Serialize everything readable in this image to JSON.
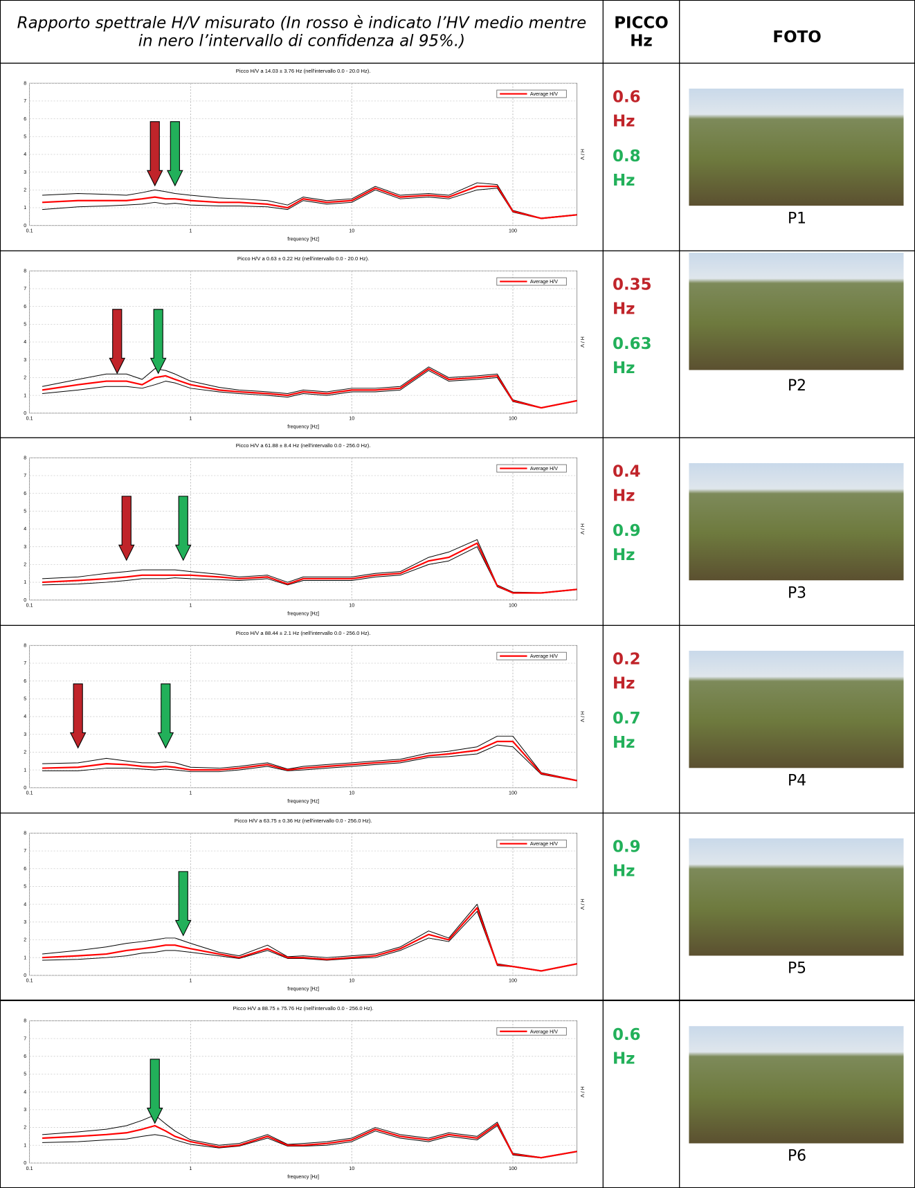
{
  "header": {
    "description": "Rapporto spettrale H/V misurato (In rosso è indicato l’HV medio mentre in nero l’intervallo di confidenza al 95%.)",
    "peak": "PICCO Hz",
    "photo": "FOTO"
  },
  "rows": [
    {
      "chart_data": {
        "type": "line",
        "title": "Picco H/V a 14.03 ± 3.76 Hz (nell'intervallo 0.0 - 20.0 Hz).",
        "x_label": "frequency [Hz]",
        "y_label": "H / V",
        "x": [
          0.12,
          0.2,
          0.3,
          0.4,
          0.5,
          0.6,
          0.7,
          0.8,
          1,
          1.5,
          2,
          3,
          4,
          5,
          7,
          10,
          14,
          20,
          30,
          40,
          60,
          80,
          100,
          150,
          250
        ],
        "series": [
          {
            "name": "Average H/V",
            "color": "#ff0000",
            "values": [
              1.3,
              1.4,
              1.4,
              1.4,
              1.5,
              1.6,
              1.5,
              1.5,
              1.4,
              1.3,
              1.3,
              1.2,
              1.0,
              1.5,
              1.3,
              1.4,
              2.1,
              1.6,
              1.7,
              1.6,
              2.2,
              2.2,
              0.8,
              0.4,
              0.6
            ]
          },
          {
            "color": "#000000",
            "values": [
              1.7,
              1.8,
              1.75,
              1.7,
              1.85,
              2.0,
              1.9,
              1.8,
              1.7,
              1.55,
              1.5,
              1.4,
              1.15,
              1.6,
              1.4,
              1.5,
              2.2,
              1.7,
              1.8,
              1.7,
              2.4,
              2.3,
              0.85,
              0.42,
              0.62
            ]
          },
          {
            "color": "#000000",
            "values": [
              0.9,
              1.05,
              1.1,
              1.15,
              1.2,
              1.3,
              1.2,
              1.25,
              1.15,
              1.1,
              1.1,
              1.05,
              0.9,
              1.4,
              1.2,
              1.3,
              2.0,
              1.5,
              1.6,
              1.5,
              2.0,
              2.1,
              0.75,
              0.38,
              0.58
            ]
          }
        ],
        "xlim": [
          0.1,
          250
        ],
        "ylim": [
          0,
          8
        ],
        "xticks": [
          0.1,
          1,
          10,
          100
        ],
        "yticks": [
          0,
          1,
          2,
          3,
          4,
          5,
          6,
          7,
          8
        ],
        "log_x": true,
        "grid": true
      },
      "peaks": [
        {
          "value": 0.6,
          "unit": "Hz",
          "color": "#c0242a"
        },
        {
          "value": 0.8,
          "unit": "Hz",
          "color": "#22b05a"
        }
      ],
      "photo_caption": "P1"
    },
    {
      "chart_data": {
        "type": "line",
        "title": "Picco H/V a 0.63 ± 0.22 Hz (nell'intervallo 0.0 - 20.0 Hz).",
        "x_label": "frequency [Hz]",
        "y_label": "H / V",
        "x": [
          0.12,
          0.2,
          0.3,
          0.4,
          0.5,
          0.6,
          0.7,
          0.8,
          1,
          1.5,
          2,
          3,
          4,
          5,
          7,
          10,
          14,
          20,
          30,
          40,
          60,
          80,
          100,
          150,
          250
        ],
        "series": [
          {
            "name": "Average H/V",
            "color": "#ff0000",
            "values": [
              1.3,
              1.6,
              1.8,
              1.8,
              1.6,
              2.0,
              2.1,
              1.9,
              1.6,
              1.3,
              1.2,
              1.1,
              1.0,
              1.2,
              1.1,
              1.3,
              1.3,
              1.4,
              2.5,
              1.9,
              2.0,
              2.1,
              0.7,
              0.3,
              0.7
            ]
          },
          {
            "color": "#000000",
            "values": [
              1.5,
              1.9,
              2.2,
              2.2,
              1.9,
              2.5,
              2.4,
              2.2,
              1.8,
              1.45,
              1.3,
              1.2,
              1.1,
              1.3,
              1.2,
              1.4,
              1.4,
              1.5,
              2.6,
              2.0,
              2.1,
              2.2,
              0.75,
              0.32,
              0.72
            ]
          },
          {
            "color": "#000000",
            "values": [
              1.1,
              1.3,
              1.5,
              1.5,
              1.4,
              1.6,
              1.8,
              1.7,
              1.4,
              1.2,
              1.1,
              1.0,
              0.9,
              1.1,
              1.0,
              1.2,
              1.2,
              1.3,
              2.4,
              1.8,
              1.9,
              2.0,
              0.65,
              0.28,
              0.68
            ]
          }
        ],
        "xlim": [
          0.1,
          250
        ],
        "ylim": [
          0,
          8
        ],
        "xticks": [
          0.1,
          1,
          10,
          100
        ],
        "yticks": [
          0,
          1,
          2,
          3,
          4,
          5,
          6,
          7,
          8
        ],
        "log_x": true,
        "grid": true
      },
      "peaks": [
        {
          "value": 0.35,
          "unit": "Hz",
          "color": "#c0242a"
        },
        {
          "value": 0.63,
          "unit": "Hz",
          "color": "#22b05a"
        }
      ],
      "photo_caption": "P2"
    },
    {
      "chart_data": {
        "type": "line",
        "title": "Picco H/V a 61.88 ± 8.4 Hz (nell'intervallo 0.0 - 256.0 Hz).",
        "x_label": "frequency [Hz]",
        "y_label": "H / V",
        "x": [
          0.12,
          0.2,
          0.3,
          0.4,
          0.5,
          0.6,
          0.7,
          0.8,
          1,
          1.5,
          2,
          3,
          4,
          5,
          7,
          10,
          14,
          20,
          30,
          40,
          60,
          80,
          100,
          150,
          250
        ],
        "series": [
          {
            "name": "Average H/V",
            "color": "#ff0000",
            "values": [
              1.0,
              1.1,
              1.2,
              1.3,
              1.4,
              1.4,
              1.4,
              1.4,
              1.4,
              1.3,
              1.2,
              1.3,
              0.9,
              1.2,
              1.2,
              1.2,
              1.4,
              1.5,
              2.2,
              2.4,
              3.2,
              0.8,
              0.4,
              0.4,
              0.6
            ]
          },
          {
            "color": "#000000",
            "values": [
              1.2,
              1.3,
              1.5,
              1.6,
              1.7,
              1.7,
              1.7,
              1.7,
              1.6,
              1.45,
              1.3,
              1.4,
              1.0,
              1.3,
              1.3,
              1.3,
              1.5,
              1.6,
              2.4,
              2.7,
              3.4,
              0.85,
              0.45,
              0.42,
              0.62
            ]
          },
          {
            "color": "#000000",
            "values": [
              0.85,
              0.9,
              1.0,
              1.1,
              1.2,
              1.2,
              1.2,
              1.25,
              1.2,
              1.15,
              1.1,
              1.2,
              0.85,
              1.1,
              1.1,
              1.1,
              1.3,
              1.4,
              2.0,
              2.2,
              3.0,
              0.75,
              0.38,
              0.38,
              0.58
            ]
          }
        ],
        "xlim": [
          0.1,
          250
        ],
        "ylim": [
          0,
          8
        ],
        "xticks": [
          0.1,
          1,
          10,
          100
        ],
        "yticks": [
          0,
          1,
          2,
          3,
          4,
          5,
          6,
          7,
          8
        ],
        "log_x": true,
        "grid": true
      },
      "peaks": [
        {
          "value": 0.4,
          "unit": "Hz",
          "color": "#c0242a"
        },
        {
          "value": 0.9,
          "unit": "Hz",
          "color": "#22b05a"
        }
      ],
      "photo_caption": "P3"
    },
    {
      "chart_data": {
        "type": "line",
        "title": "Picco H/V a 88.44 ± 2.1 Hz (nell'intervallo 0.0 - 256.0 Hz).",
        "x_label": "frequency [Hz]",
        "y_label": "H / V",
        "x": [
          0.12,
          0.2,
          0.3,
          0.4,
          0.5,
          0.6,
          0.7,
          0.8,
          1,
          1.5,
          2,
          3,
          4,
          5,
          7,
          10,
          14,
          20,
          30,
          40,
          60,
          80,
          100,
          150,
          250
        ],
        "series": [
          {
            "name": "Average H/V",
            "color": "#ff0000",
            "values": [
              1.1,
              1.15,
              1.35,
              1.3,
              1.2,
              1.15,
              1.2,
              1.15,
              1.0,
              1.0,
              1.1,
              1.3,
              1.0,
              1.1,
              1.2,
              1.3,
              1.4,
              1.5,
              1.8,
              1.9,
              2.1,
              2.6,
              2.6,
              0.8,
              0.4
            ]
          },
          {
            "color": "#000000",
            "values": [
              1.35,
              1.4,
              1.65,
              1.5,
              1.4,
              1.4,
              1.45,
              1.4,
              1.15,
              1.1,
              1.2,
              1.4,
              1.05,
              1.2,
              1.3,
              1.4,
              1.5,
              1.6,
              1.95,
              2.05,
              2.3,
              2.9,
              2.9,
              0.85,
              0.42
            ]
          },
          {
            "color": "#000000",
            "values": [
              0.95,
              0.95,
              1.1,
              1.1,
              1.05,
              1.0,
              1.05,
              1.0,
              0.9,
              0.9,
              1.0,
              1.2,
              0.95,
              1.0,
              1.1,
              1.2,
              1.3,
              1.4,
              1.7,
              1.75,
              1.9,
              2.4,
              2.3,
              0.75,
              0.38
            ]
          }
        ],
        "xlim": [
          0.1,
          250
        ],
        "ylim": [
          0,
          8
        ],
        "xticks": [
          0.1,
          1,
          10,
          100
        ],
        "yticks": [
          0,
          1,
          2,
          3,
          4,
          5,
          6,
          7,
          8
        ],
        "log_x": true,
        "grid": true
      },
      "peaks": [
        {
          "value": 0.2,
          "unit": "Hz",
          "color": "#c0242a"
        },
        {
          "value": 0.7,
          "unit": "Hz",
          "color": "#22b05a"
        }
      ],
      "photo_caption": "P4"
    },
    {
      "chart_data": {
        "type": "line",
        "title": "Picco H/V a 63.75 ± 0.36 Hz (nell'intervallo 0.0 - 256.0 Hz).",
        "x_label": "frequency [Hz]",
        "y_label": "H / V",
        "x": [
          0.12,
          0.2,
          0.3,
          0.4,
          0.5,
          0.6,
          0.7,
          0.8,
          1,
          1.5,
          2,
          3,
          4,
          5,
          7,
          10,
          14,
          20,
          30,
          40,
          60,
          80,
          100,
          150,
          250
        ],
        "series": [
          {
            "name": "Average H/V",
            "color": "#ff0000",
            "values": [
              1.0,
              1.1,
              1.2,
              1.4,
              1.5,
              1.6,
              1.7,
              1.7,
              1.5,
              1.2,
              1.0,
              1.5,
              1.0,
              1.0,
              0.9,
              1.0,
              1.1,
              1.5,
              2.3,
              2.0,
              3.8,
              0.6,
              0.5,
              0.25,
              0.65
            ]
          },
          {
            "color": "#000000",
            "values": [
              1.2,
              1.4,
              1.6,
              1.8,
              1.9,
              2.0,
              2.1,
              2.1,
              1.8,
              1.3,
              1.1,
              1.7,
              1.05,
              1.1,
              1.0,
              1.1,
              1.2,
              1.6,
              2.5,
              2.1,
              4.0,
              0.65,
              0.52,
              0.27,
              0.67
            ]
          },
          {
            "color": "#000000",
            "values": [
              0.85,
              0.9,
              1.0,
              1.1,
              1.25,
              1.3,
              1.4,
              1.4,
              1.3,
              1.1,
              0.95,
              1.4,
              0.95,
              0.95,
              0.85,
              0.95,
              1.0,
              1.4,
              2.1,
              1.9,
              3.6,
              0.55,
              0.48,
              0.23,
              0.63
            ]
          }
        ],
        "xlim": [
          0.1,
          250
        ],
        "ylim": [
          0,
          8
        ],
        "xticks": [
          0.1,
          1,
          10,
          100
        ],
        "yticks": [
          0,
          1,
          2,
          3,
          4,
          5,
          6,
          7,
          8
        ],
        "log_x": true,
        "grid": true
      },
      "peaks": [
        {
          "value": 0.9,
          "unit": "Hz",
          "color": "#22b05a"
        }
      ],
      "photo_caption": "P5"
    },
    {
      "chart_data": {
        "type": "line",
        "title": "Picco H/V a 88.75 ± 75.76 Hz (nell'intervallo 0.0 - 256.0 Hz).",
        "x_label": "frequency [Hz]",
        "y_label": "H / V",
        "x": [
          0.12,
          0.2,
          0.3,
          0.4,
          0.5,
          0.6,
          0.7,
          0.8,
          1,
          1.5,
          2,
          3,
          4,
          5,
          7,
          10,
          14,
          20,
          30,
          40,
          60,
          80,
          100,
          150,
          250
        ],
        "series": [
          {
            "name": "Average H/V",
            "color": "#ff0000",
            "values": [
              1.4,
              1.5,
              1.6,
              1.7,
              1.9,
              2.1,
              1.8,
              1.5,
              1.2,
              0.9,
              1.0,
              1.5,
              1.0,
              1.0,
              1.1,
              1.3,
              1.9,
              1.5,
              1.3,
              1.6,
              1.4,
              2.2,
              0.5,
              0.3,
              0.65
            ]
          },
          {
            "color": "#000000",
            "values": [
              1.6,
              1.75,
              1.9,
              2.1,
              2.4,
              2.7,
              2.2,
              1.8,
              1.3,
              1.0,
              1.1,
              1.6,
              1.05,
              1.1,
              1.2,
              1.4,
              2.0,
              1.6,
              1.4,
              1.7,
              1.5,
              2.3,
              0.55,
              0.32,
              0.67
            ]
          },
          {
            "color": "#000000",
            "values": [
              1.15,
              1.2,
              1.3,
              1.35,
              1.5,
              1.6,
              1.5,
              1.3,
              1.05,
              0.85,
              0.95,
              1.4,
              0.95,
              0.95,
              1.0,
              1.2,
              1.8,
              1.4,
              1.2,
              1.5,
              1.3,
              2.1,
              0.45,
              0.28,
              0.63
            ]
          }
        ],
        "xlim": [
          0.1,
          250
        ],
        "ylim": [
          0,
          8
        ],
        "xticks": [
          0.1,
          1,
          10,
          100
        ],
        "yticks": [
          0,
          1,
          2,
          3,
          4,
          5,
          6,
          7,
          8
        ],
        "log_x": true,
        "grid": true
      },
      "peaks": [
        {
          "value": 0.6,
          "unit": "Hz",
          "color": "#22b05a"
        }
      ],
      "photo_caption": "P6"
    }
  ]
}
